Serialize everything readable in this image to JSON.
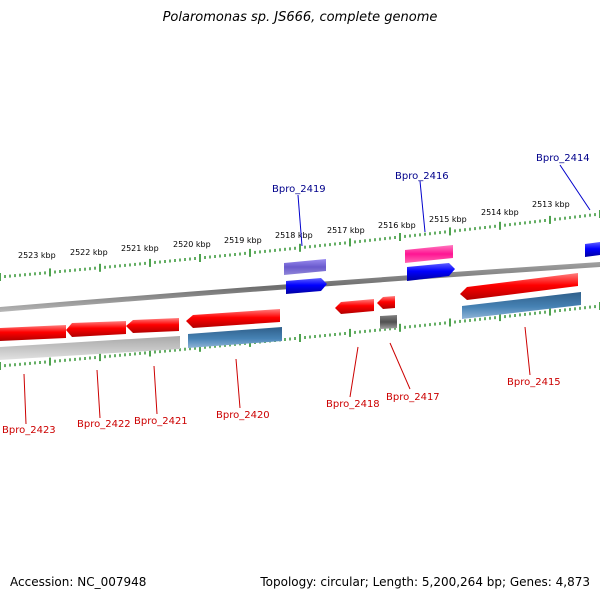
{
  "title": "Polaromonas sp. JS666, complete genome",
  "footer": {
    "accession": "Accession: NC_007948",
    "summary": "Topology: circular; Length: 5,200,264 bp; Genes: 4,873"
  },
  "colors": {
    "backbone": "#808080",
    "ticks": "#228b22",
    "label_forward": "#00008b",
    "label_reverse": "#cc0000",
    "gene_red": "#ff0000",
    "gene_blue": "#0000ff",
    "gene_purple": "#6a5acd",
    "gene_pink": "#ff1493",
    "gene_steel": "#4682b4",
    "gene_gray": "#c0c0c0",
    "gene_dark": "#505050"
  },
  "scale_labels": [
    "2523 kbp",
    "2522 kbp",
    "2521 kbp",
    "2520 kbp",
    "2519 kbp",
    "2518 kbp",
    "2517 kbp",
    "2516 kbp",
    "2515 kbp",
    "2514 kbp",
    "2513 kbp"
  ],
  "gene_labels": {
    "forward": [
      "Bpro_2419",
      "Bpro_2416",
      "Bpro_2414"
    ],
    "reverse": [
      "Bpro_2423",
      "Bpro_2422",
      "Bpro_2421",
      "Bpro_2420",
      "Bpro_2418",
      "Bpro_2417",
      "Bpro_2415"
    ]
  }
}
